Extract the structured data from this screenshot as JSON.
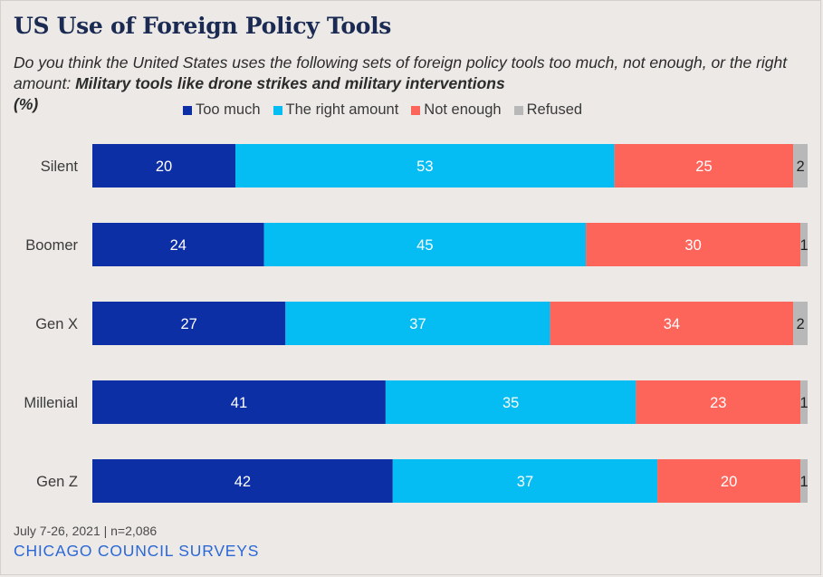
{
  "title": "US Use of Foreign Policy Tools",
  "subtitle_regular": "Do you think the United States uses the following sets of foreign policy tools too much, not enough, or the right amount: ",
  "subtitle_bold": "Military tools like drone strikes and military interventions",
  "subtitle_unit": "(%)",
  "footer_note": "July 7-26, 2021 | n=2,086",
  "brand": "CHICAGO COUNCIL SURVEYS",
  "chart_data": {
    "type": "bar",
    "orientation": "horizontal",
    "stacked": true,
    "categories": [
      "Silent",
      "Boomer",
      "Gen X",
      "Millenial",
      "Gen Z"
    ],
    "series": [
      {
        "name": "Too much",
        "color": "#0d2fa6",
        "label_color": "#ffffff",
        "values": [
          20,
          24,
          27,
          41,
          42
        ]
      },
      {
        "name": "The right amount",
        "color": "#05bdf2",
        "label_color": "#ffffff",
        "values": [
          53,
          45,
          37,
          35,
          37
        ]
      },
      {
        "name": "Not enough",
        "color": "#fd645a",
        "label_color": "#ffffff",
        "values": [
          25,
          30,
          34,
          23,
          20
        ]
      },
      {
        "name": "Refused",
        "color": "#b8b8b8",
        "label_color": "#222222",
        "values": [
          2,
          1,
          2,
          1,
          1
        ]
      }
    ],
    "xlim": [
      0,
      100
    ],
    "grid": false,
    "legend_position": "top"
  }
}
